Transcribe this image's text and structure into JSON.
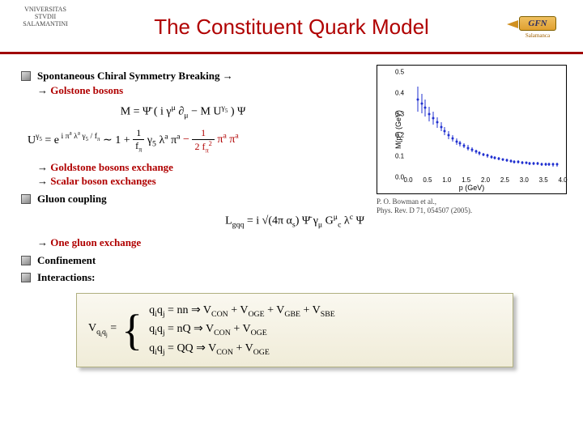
{
  "header": {
    "left_logo_text": "VNIVERSITAS STVDII SALAMANTINI",
    "title": "The Constituent Quark Model",
    "right_badge": "GFN",
    "right_sub": "Salamanca"
  },
  "bullets": {
    "b1_main": "Spontaneous Chiral Symmetry Breaking",
    "b1_sub": "Golstone bosons",
    "b2a": "Goldstone bosons exchange",
    "b2b": "Scalar boson exchanges",
    "b3": "Gluon coupling",
    "b3_sub": "One gluon exchange",
    "b4": "Confinement",
    "b5": "Interactions:"
  },
  "equations": {
    "eq1_html": "<span class='script'>M</span> = Ψ̄ ( i γ<sup>μ</sup> ∂<sub>μ</sub> − M U<sup>γ<sub>5</sub></sup> ) Ψ",
    "eq2_html": "U<sup>γ<sub>5</sub></sup> = e<sup> i π<sup>a</sup> λ<sup>a</sup> γ<sub>5</sub> / f<sub>π</sub></sup> ∼ 1 + <span class='frac'><span class='num'>1</span><span class='den'>f<sub>π</sub></span></span> γ<sub>5</sub> λ<sup>a</sup> π<sup>a</sup> <span class='red'>− <span class='frac'><span class='num'>1</span><span class='den'>2 f<sub>π</sub><sup>2</sup></span></span> π<sup>a</sup> π<sup>a</sup></span>",
    "eq3_html": "<span class='script'>L</span><sub>gqq</sub> = i √(4π α<sub>s</sub>) Ψ̄ γ<sub>μ</sub> G<sup>μ</sup><sub>c</sub> λ<sup>c</sup> Ψ",
    "pot_lhs": "V<sub>q<sub>i</sub>q<sub>j</sub></sub> =",
    "case1_html": "q<sub>i</sub>q<sub>j</sub> = nn ⇒ V<sub>CON</sub> + V<sub>OGE</sub> + V<sub>GBE</sub> + V<sub>SBE</sub>",
    "case2_html": "q<sub>i</sub>q<sub>j</sub> = nQ ⇒ V<sub>CON</sub> + V<sub>OGE</sub>",
    "case3_html": "q<sub>i</sub>q<sub>j</sub> = QQ ⇒ V<sub>CON</sub> + V<sub>OGE</sub>"
  },
  "chart": {
    "type": "scatter",
    "ylabel": "M(p²) (GeV)",
    "xlabel": "p (GeV)",
    "xlim": [
      0,
      4.0
    ],
    "ylim": [
      0,
      0.5
    ],
    "xticks": [
      0.0,
      0.5,
      1.0,
      1.5,
      2.0,
      2.5,
      3.0,
      3.5,
      4.0
    ],
    "yticks": [
      0.0,
      0.1,
      0.2,
      0.3,
      0.4,
      0.5
    ],
    "point_color": "#2030d0",
    "error_color": "#2030d0",
    "background_color": "#ffffff",
    "points": [
      {
        "x": 0.25,
        "y": 0.37,
        "e": 0.06
      },
      {
        "x": 0.35,
        "y": 0.35,
        "e": 0.045
      },
      {
        "x": 0.45,
        "y": 0.33,
        "e": 0.04
      },
      {
        "x": 0.55,
        "y": 0.3,
        "e": 0.035
      },
      {
        "x": 0.65,
        "y": 0.28,
        "e": 0.03
      },
      {
        "x": 0.75,
        "y": 0.26,
        "e": 0.025
      },
      {
        "x": 0.85,
        "y": 0.24,
        "e": 0.022
      },
      {
        "x": 0.95,
        "y": 0.22,
        "e": 0.02
      },
      {
        "x": 1.05,
        "y": 0.2,
        "e": 0.018
      },
      {
        "x": 1.15,
        "y": 0.185,
        "e": 0.016
      },
      {
        "x": 1.25,
        "y": 0.17,
        "e": 0.015
      },
      {
        "x": 1.35,
        "y": 0.16,
        "e": 0.014
      },
      {
        "x": 1.45,
        "y": 0.15,
        "e": 0.013
      },
      {
        "x": 1.55,
        "y": 0.14,
        "e": 0.012
      },
      {
        "x": 1.65,
        "y": 0.13,
        "e": 0.011
      },
      {
        "x": 1.75,
        "y": 0.122,
        "e": 0.01
      },
      {
        "x": 1.85,
        "y": 0.115,
        "e": 0.01
      },
      {
        "x": 1.95,
        "y": 0.108,
        "e": 0.009
      },
      {
        "x": 2.05,
        "y": 0.102,
        "e": 0.009
      },
      {
        "x": 2.15,
        "y": 0.096,
        "e": 0.008
      },
      {
        "x": 2.25,
        "y": 0.091,
        "e": 0.008
      },
      {
        "x": 2.35,
        "y": 0.087,
        "e": 0.008
      },
      {
        "x": 2.45,
        "y": 0.083,
        "e": 0.007
      },
      {
        "x": 2.55,
        "y": 0.08,
        "e": 0.007
      },
      {
        "x": 2.65,
        "y": 0.077,
        "e": 0.007
      },
      {
        "x": 2.75,
        "y": 0.074,
        "e": 0.007
      },
      {
        "x": 2.85,
        "y": 0.072,
        "e": 0.007
      },
      {
        "x": 2.95,
        "y": 0.07,
        "e": 0.007
      },
      {
        "x": 3.05,
        "y": 0.068,
        "e": 0.007
      },
      {
        "x": 3.15,
        "y": 0.066,
        "e": 0.007
      },
      {
        "x": 3.25,
        "y": 0.065,
        "e": 0.007
      },
      {
        "x": 3.35,
        "y": 0.064,
        "e": 0.008
      },
      {
        "x": 3.45,
        "y": 0.063,
        "e": 0.008
      },
      {
        "x": 3.55,
        "y": 0.062,
        "e": 0.008
      },
      {
        "x": 3.65,
        "y": 0.061,
        "e": 0.009
      },
      {
        "x": 3.75,
        "y": 0.06,
        "e": 0.009
      },
      {
        "x": 3.85,
        "y": 0.06,
        "e": 0.01
      }
    ],
    "citation1": "P. O. Bowman et al.,",
    "citation2": "Phys. Rev. D 71, 054507 (2005)."
  }
}
